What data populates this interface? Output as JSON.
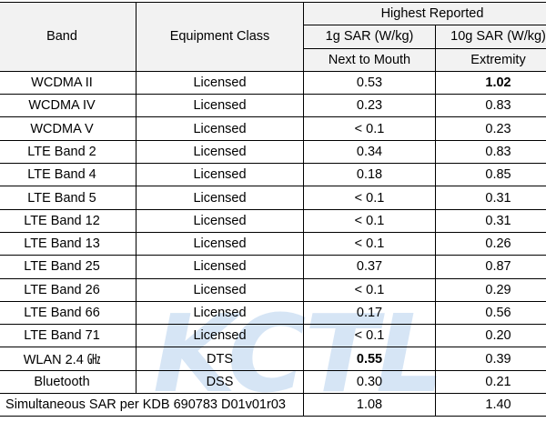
{
  "watermark": "KCTL",
  "headers": {
    "band": "Band",
    "equipment_class": "Equipment Class",
    "highest_reported": "Highest Reported",
    "sar_1g": "1g SAR (W/kg)",
    "sar_10g": "10g SAR (W/kg)",
    "next_to_mouth": "Next to Mouth",
    "extremity": "Extremity"
  },
  "rows": [
    {
      "band": "WCDMA II",
      "class": "Licensed",
      "sar1g": "0.53",
      "sar10g": "1.02"
    },
    {
      "band": "WCDMA IV",
      "class": "Licensed",
      "sar1g": "0.23",
      "sar10g": "0.83"
    },
    {
      "band": "WCDMA V",
      "class": "Licensed",
      "sar1g": "< 0.1",
      "sar10g": "0.23"
    },
    {
      "band": "LTE Band 2",
      "class": "Licensed",
      "sar1g": "0.34",
      "sar10g": "0.83"
    },
    {
      "band": "LTE Band 4",
      "class": "Licensed",
      "sar1g": "0.18",
      "sar10g": "0.85"
    },
    {
      "band": "LTE Band 5",
      "class": "Licensed",
      "sar1g": "< 0.1",
      "sar10g": "0.31"
    },
    {
      "band": "LTE Band 12",
      "class": "Licensed",
      "sar1g": "< 0.1",
      "sar10g": "0.31"
    },
    {
      "band": "LTE Band 13",
      "class": "Licensed",
      "sar1g": "< 0.1",
      "sar10g": "0.26"
    },
    {
      "band": "LTE Band 25",
      "class": "Licensed",
      "sar1g": "0.37",
      "sar10g": "0.87"
    },
    {
      "band": "LTE Band 26",
      "class": "Licensed",
      "sar1g": "< 0.1",
      "sar10g": "0.29"
    },
    {
      "band": "LTE Band 66",
      "class": "Licensed",
      "sar1g": "0.17",
      "sar10g": "0.56"
    },
    {
      "band": "LTE Band 71",
      "class": "Licensed",
      "sar1g": "< 0.1",
      "sar10g": "0.20"
    },
    {
      "band": "WLAN 2.4 ㎓",
      "class": "DTS",
      "sar1g": "0.55",
      "sar10g": "0.39"
    },
    {
      "band": "Bluetooth",
      "class": "DSS",
      "sar1g": "0.30",
      "sar10g": "0.21"
    }
  ],
  "summary": {
    "label": "Simultaneous SAR per KDB 690783 D01v01r03",
    "sar1g": "1.08",
    "sar10g": "1.40"
  }
}
